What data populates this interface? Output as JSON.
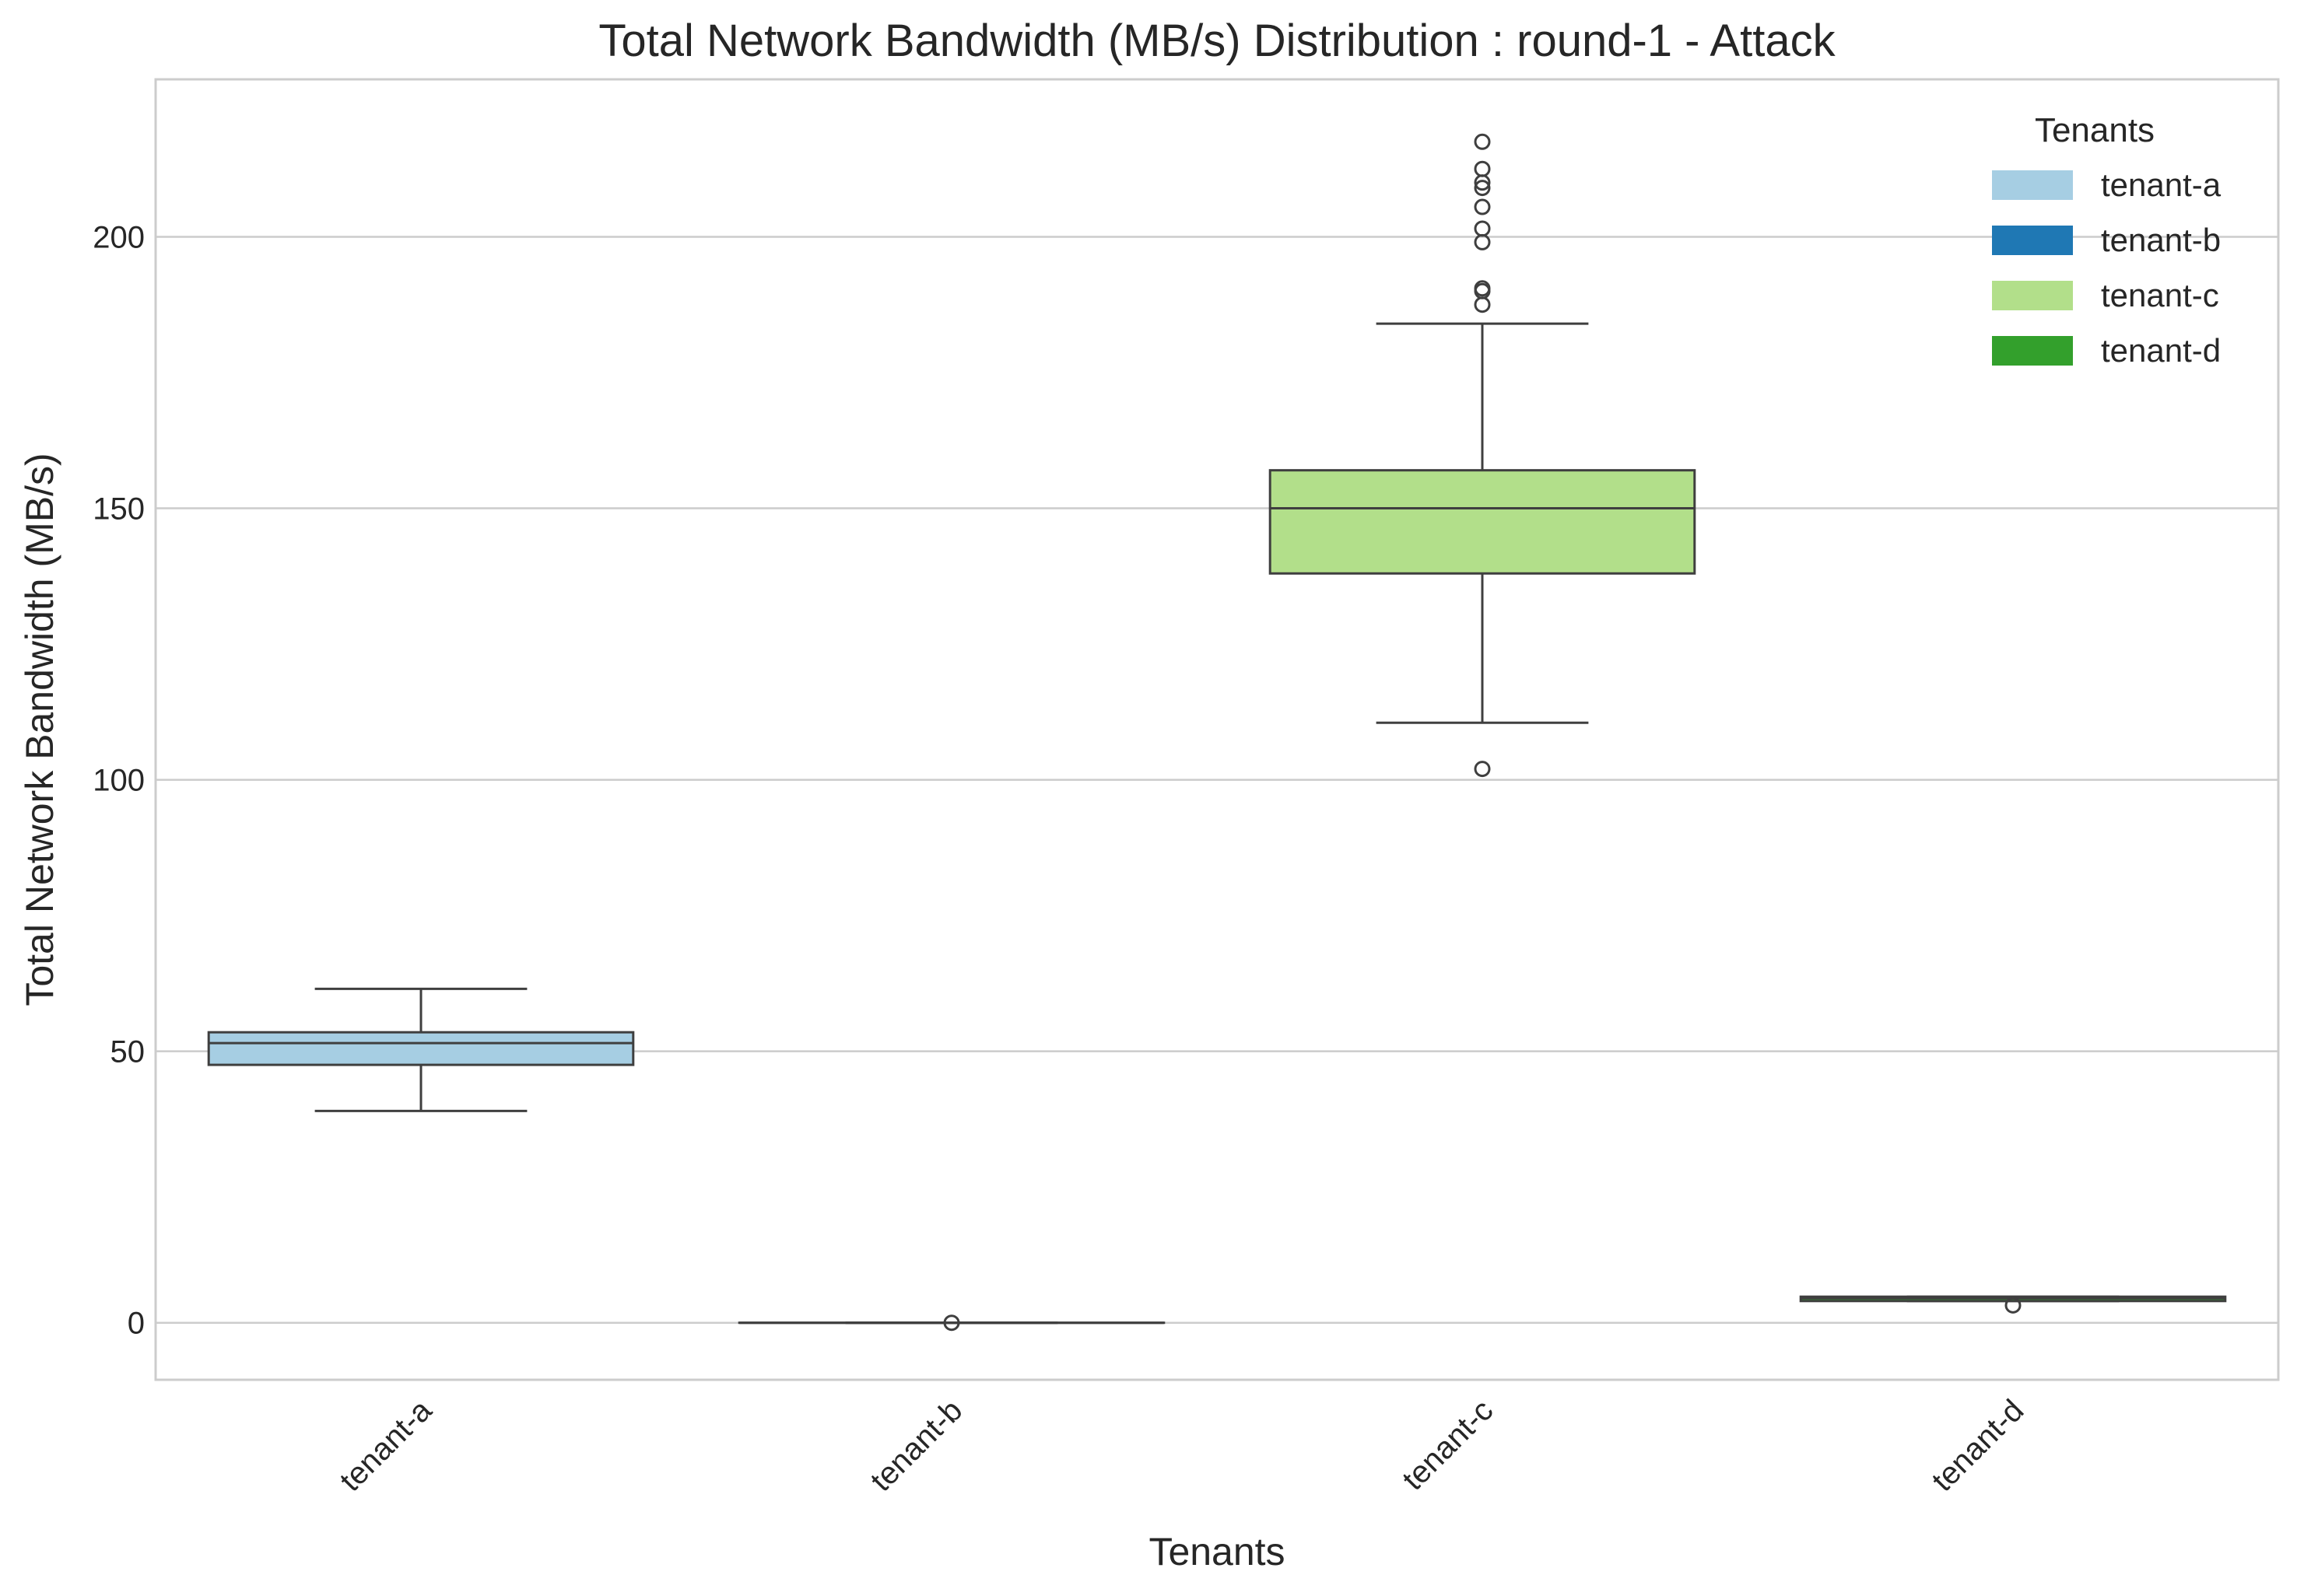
{
  "chart_data": {
    "type": "box",
    "title": "Total Network Bandwidth (MB/s) Distribution : round-1 - Attack",
    "xlabel": "Tenants",
    "ylabel": "Total Network Bandwidth (MB/s)",
    "ylim": [
      -10.5,
      229
    ],
    "yticks": [
      0,
      50,
      100,
      150,
      200
    ],
    "grid": "horizontal",
    "categories": [
      "tenant-a",
      "tenant-b",
      "tenant-c",
      "tenant-d"
    ],
    "boxes": [
      {
        "category": "tenant-a",
        "color": "#a6cee3",
        "whisker_low": 39,
        "q1": 47.5,
        "median": 51.5,
        "q3": 53.5,
        "whisker_high": 61.5,
        "outliers": []
      },
      {
        "category": "tenant-b",
        "color": "#1f78b4",
        "whisker_low": 0,
        "q1": 0,
        "median": 0,
        "q3": 0,
        "whisker_high": 0,
        "outliers": [
          0
        ]
      },
      {
        "category": "tenant-c",
        "color": "#b2df8a",
        "whisker_low": 110.5,
        "q1": 138,
        "median": 150,
        "q3": 157,
        "whisker_high": 184,
        "outliers": [
          102,
          187.5,
          190,
          190.5,
          199,
          201.5,
          205.5,
          209,
          210,
          212.5,
          217.5
        ]
      },
      {
        "category": "tenant-d",
        "color": "#33a02c",
        "whisker_low": 4,
        "q1": 4,
        "median": 4.5,
        "q3": 4.8,
        "whisker_high": 4.8,
        "outliers": [
          3.2
        ]
      }
    ],
    "legend": {
      "title": "Tenants",
      "placement": "top-right",
      "entries": [
        {
          "label": "tenant-a",
          "color": "#a6cee3"
        },
        {
          "label": "tenant-b",
          "color": "#1f78b4"
        },
        {
          "label": "tenant-c",
          "color": "#b2df8a"
        },
        {
          "label": "tenant-d",
          "color": "#33a02c"
        }
      ]
    }
  }
}
